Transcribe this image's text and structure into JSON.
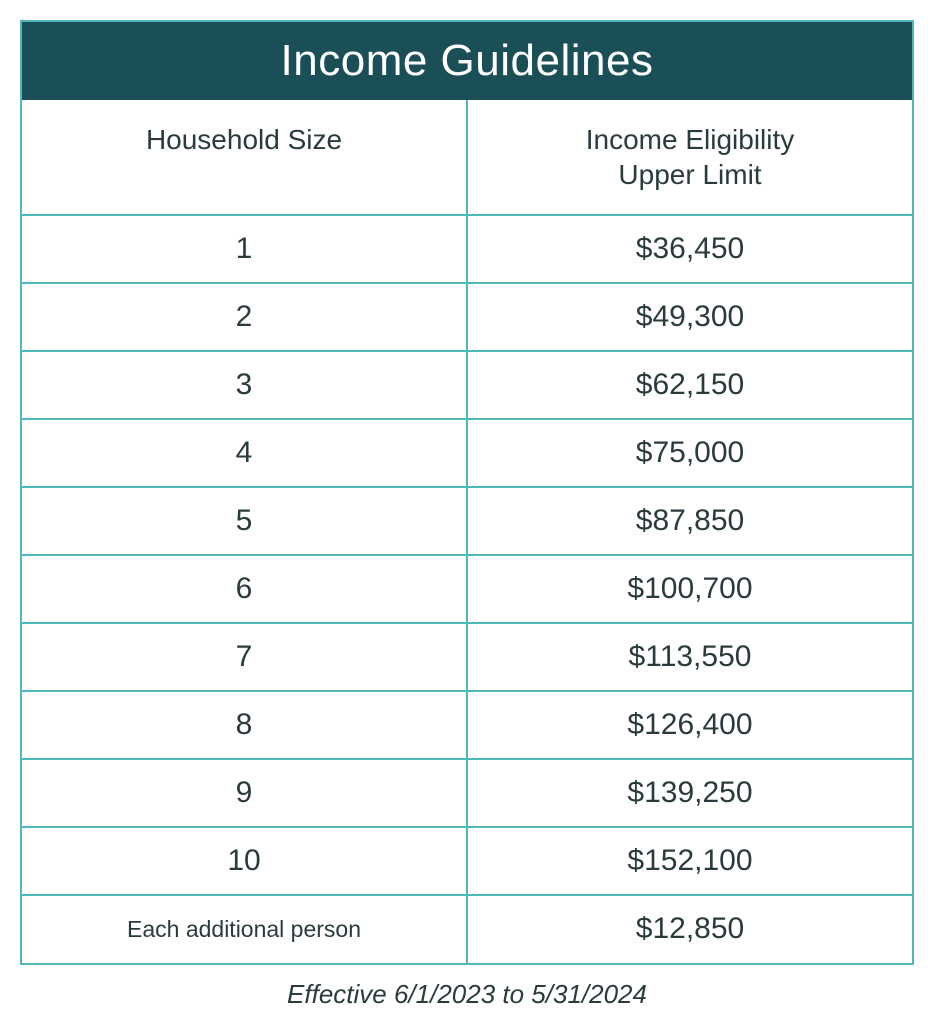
{
  "table": {
    "type": "table",
    "title": "Income Guidelines",
    "title_bg_color": "#1a4f57",
    "title_text_color": "#ffffff",
    "title_fontsize": 44,
    "border_color": "#4fb8b8",
    "border_width": 2,
    "background_color": "#ffffff",
    "text_color": "#2a3b3e",
    "columns": [
      {
        "label": "Household Size",
        "align": "center"
      },
      {
        "label": "Income Eligibility\nUpper Limit",
        "align": "center"
      }
    ],
    "header_fontsize": 28,
    "cell_fontsize": 30,
    "rows": [
      {
        "size": "1",
        "limit": "$36,450"
      },
      {
        "size": "2",
        "limit": "$49,300"
      },
      {
        "size": "3",
        "limit": "$62,150"
      },
      {
        "size": "4",
        "limit": "$75,000"
      },
      {
        "size": "5",
        "limit": "$87,850"
      },
      {
        "size": "6",
        "limit": "$100,700"
      },
      {
        "size": "7",
        "limit": "$113,550"
      },
      {
        "size": "8",
        "limit": "$126,400"
      },
      {
        "size": "9",
        "limit": "$139,250"
      },
      {
        "size": "10",
        "limit": "$152,100"
      }
    ],
    "footer_row": {
      "size": "Each additional person",
      "limit": "$12,850",
      "size_fontsize": 23
    }
  },
  "footnote": {
    "text": "Effective 6/1/2023 to 5/31/2024",
    "fontsize": 26,
    "font_style": "italic"
  }
}
